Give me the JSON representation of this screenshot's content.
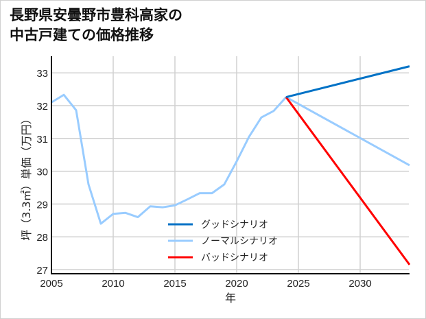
{
  "title": {
    "line1": "長野県安曇野市豊科高家の",
    "line2": "中古戸建ての価格推移"
  },
  "chart_data": {
    "type": "line",
    "title": "長野県安曇野市豊科高家の中古戸建ての価格推移",
    "xlabel": "年",
    "ylabel": "坪（3.3㎡）単価（万円）",
    "xlim": [
      2005,
      2034
    ],
    "ylim": [
      26.87,
      33.5
    ],
    "xticks": [
      2005,
      2010,
      2015,
      2020,
      2025,
      2030
    ],
    "yticks": [
      27,
      28,
      29,
      30,
      31,
      32,
      33
    ],
    "grid": true,
    "legend_position": "lower center",
    "history": {
      "x": [
        2005,
        2006,
        2007,
        2008,
        2009,
        2010,
        2011,
        2012,
        2013,
        2014,
        2015,
        2016,
        2017,
        2018,
        2019,
        2020,
        2021,
        2022,
        2023,
        2024
      ],
      "values": [
        32.1,
        32.33,
        31.86,
        29.6,
        28.4,
        28.7,
        28.73,
        28.6,
        28.93,
        28.9,
        28.96,
        29.14,
        29.33,
        29.33,
        29.6,
        30.3,
        31.05,
        31.64,
        31.84,
        32.26
      ],
      "color": "#99ccff"
    },
    "series": [
      {
        "name": "グッドシナリオ",
        "x": [
          2024,
          2034
        ],
        "values": [
          32.26,
          33.2
        ],
        "color": "#0072c6"
      },
      {
        "name": "ノーマルシナリオ",
        "x": [
          2024,
          2034
        ],
        "values": [
          32.26,
          30.18
        ],
        "color": "#99ccff"
      },
      {
        "name": "バッドシナリオ",
        "x": [
          2024,
          2034
        ],
        "values": [
          32.26,
          27.15
        ],
        "color": "#ff0000"
      }
    ]
  },
  "axes": {
    "xlabel": "年",
    "ylabel": "坪（3.3㎡）単価（万円）",
    "xticks": [
      "2005",
      "2010",
      "2015",
      "2020",
      "2025",
      "2030"
    ],
    "yticks": [
      "33",
      "32",
      "31",
      "30",
      "29",
      "28",
      "27"
    ]
  },
  "legend": [
    {
      "label": "グッドシナリオ",
      "color": "#0072c6"
    },
    {
      "label": "ノーマルシナリオ",
      "color": "#99ccff"
    },
    {
      "label": "バッドシナリオ",
      "color": "#ff0000"
    }
  ]
}
